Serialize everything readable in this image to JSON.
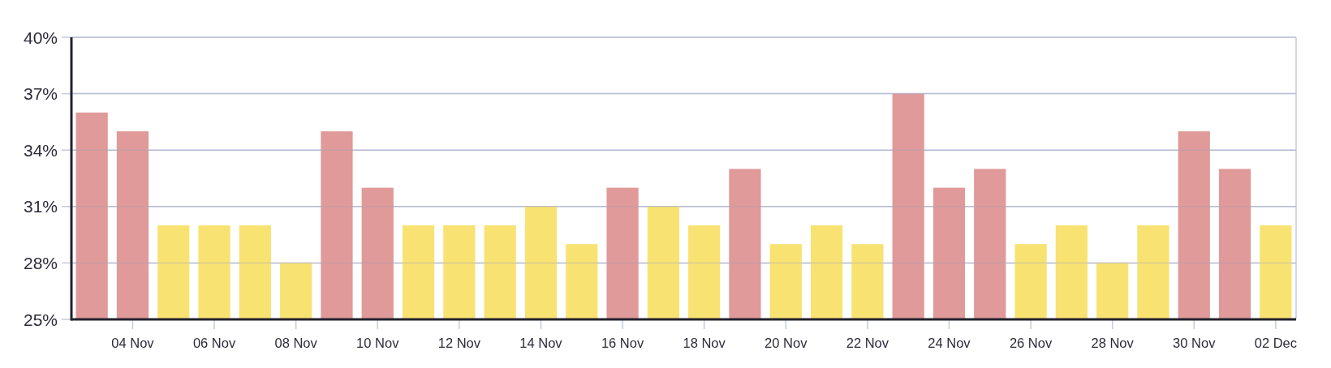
{
  "chart_data": {
    "type": "bar",
    "categories": [
      null,
      "04 Nov",
      null,
      "06 Nov",
      null,
      "08 Nov",
      null,
      "10 Nov",
      null,
      "12 Nov",
      null,
      "14 Nov",
      null,
      "16 Nov",
      null,
      "18 Nov",
      null,
      "20 Nov",
      null,
      "22 Nov",
      null,
      "24 Nov",
      null,
      "26 Nov",
      null,
      "28 Nov",
      null,
      "30 Nov",
      null,
      "02 Dec"
    ],
    "values": [
      36,
      35,
      30,
      30,
      30,
      28,
      35,
      32,
      30,
      30,
      30,
      31,
      29,
      32,
      31,
      30,
      33,
      29,
      30,
      29,
      37,
      32,
      33,
      29,
      30,
      28,
      30,
      35,
      33,
      30
    ],
    "colors": [
      "#e09a99",
      "#e09a99",
      "#f8e372",
      "#f8e372",
      "#f8e372",
      "#f8e372",
      "#e09a99",
      "#e09a99",
      "#f8e372",
      "#f8e372",
      "#f8e372",
      "#f8e372",
      "#f8e372",
      "#e09a99",
      "#f8e372",
      "#f8e372",
      "#e09a99",
      "#f8e372",
      "#f8e372",
      "#f8e372",
      "#e09a99",
      "#e09a99",
      "#e09a99",
      "#f8e372",
      "#f8e372",
      "#f8e372",
      "#f8e372",
      "#e09a99",
      "#e09a99",
      "#f8e372"
    ],
    "ylim": [
      25,
      40
    ],
    "yticks": [
      {
        "value": 25,
        "label": "25%"
      },
      {
        "value": 28,
        "label": "28%"
      },
      {
        "value": 31,
        "label": "31%"
      },
      {
        "value": 34,
        "label": "34%"
      },
      {
        "value": 37,
        "label": "37%"
      },
      {
        "value": 40,
        "label": "40%"
      }
    ],
    "grid": "y"
  }
}
